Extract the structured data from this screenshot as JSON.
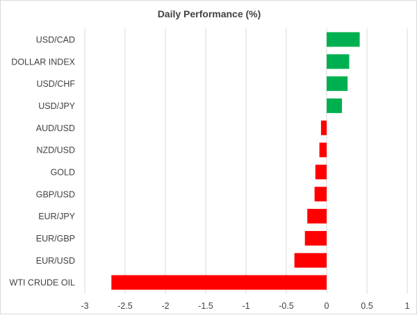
{
  "chart_data": {
    "type": "bar",
    "orientation": "horizontal",
    "title": "Daily Performance (%)",
    "xlabel": "",
    "ylabel": "",
    "xlim": [
      -3,
      1
    ],
    "x_ticks": [
      "-3",
      "-2.5",
      "-2",
      "-1.5",
      "-1",
      "-0.5",
      "0",
      "0.5",
      "1"
    ],
    "grid": true,
    "categories": [
      "USD/CAD",
      "DOLLAR INDEX",
      "USD/CHF",
      "USD/JPY",
      "AUD/USD",
      "NZD/USD",
      "GOLD",
      "GBP/USD",
      "EUR/JPY",
      "EUR/GBP",
      "EUR/USD",
      "WTI CRUDE OIL"
    ],
    "values": [
      0.41,
      0.28,
      0.26,
      0.19,
      -0.07,
      -0.09,
      -0.14,
      -0.15,
      -0.24,
      -0.27,
      -0.4,
      -2.67
    ],
    "colors": {
      "positive": "#00b050",
      "negative": "#ff0000"
    }
  }
}
